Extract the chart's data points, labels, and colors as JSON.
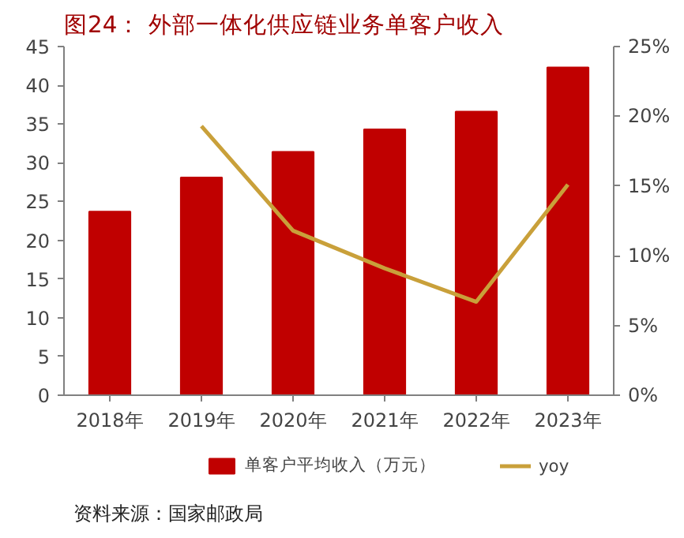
{
  "chart_data": {
    "type": "bar",
    "title": "图24：  外部一体化供应链业务单客户收入",
    "categories": [
      "2018年",
      "2019年",
      "2020年",
      "2021年",
      "2022年",
      "2023年"
    ],
    "series": [
      {
        "name": "单客户平均收入（万元）",
        "color": "#c00000",
        "type": "bar",
        "values": [
          23.7,
          28.1,
          31.4,
          34.3,
          36.6,
          42.3
        ]
      },
      {
        "name": "yoy",
        "color": "#c9a03a",
        "type": "line",
        "axis": "y2",
        "values": [
          null,
          19.3,
          11.8,
          9.1,
          6.7,
          15.1
        ]
      }
    ],
    "ylim": [
      0,
      45
    ],
    "yticks": [
      0,
      5,
      10,
      15,
      20,
      25,
      30,
      35,
      40,
      45
    ],
    "y2lim": [
      0,
      25
    ],
    "y2ticks": [
      {
        "value": 0,
        "label": "0%"
      },
      {
        "value": 5,
        "label": "5%"
      },
      {
        "value": 10,
        "label": "10%"
      },
      {
        "value": 15,
        "label": "15%"
      },
      {
        "value": 20,
        "label": "20%"
      },
      {
        "value": 25,
        "label": "25%"
      }
    ],
    "grid": false,
    "legend": "bottom",
    "marker": "none",
    "line_style": "solid",
    "annotations": [
      "资料来源：国家邮政局"
    ]
  }
}
